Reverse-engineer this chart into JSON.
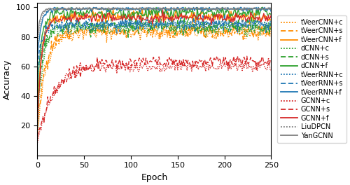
{
  "title": "",
  "xlabel": "Epoch",
  "ylabel": "Accuracy",
  "xlim": [
    0,
    250
  ],
  "ylim": [
    0,
    100
  ],
  "xticks": [
    0,
    50,
    100,
    150,
    200,
    250
  ],
  "yticks": [
    20,
    40,
    60,
    80,
    100
  ],
  "series": [
    {
      "label": "tVeerCNN+c",
      "color": "#FF8C00",
      "linestyle": "dotted",
      "start": 10,
      "final": 83,
      "rise": 0.12,
      "noise": 2.5
    },
    {
      "label": "tVeerCNN+s",
      "color": "#FF8C00",
      "linestyle": "dashed",
      "start": 18,
      "final": 84,
      "rise": 0.12,
      "noise": 2.5
    },
    {
      "label": "tVeerCNN+f",
      "color": "#FF8C00",
      "linestyle": "solid",
      "start": 30,
      "final": 94,
      "rise": 0.22,
      "noise": 2.0
    },
    {
      "label": "dCNN+c",
      "color": "#2CA02C",
      "linestyle": "dotted",
      "start": 15,
      "final": 86,
      "rise": 0.18,
      "noise": 2.5
    },
    {
      "label": "dCNN+s",
      "color": "#2CA02C",
      "linestyle": "dashed",
      "start": 25,
      "final": 87,
      "rise": 0.18,
      "noise": 2.5
    },
    {
      "label": "dCNN+f",
      "color": "#2CA02C",
      "linestyle": "solid",
      "start": 40,
      "final": 96,
      "rise": 0.25,
      "noise": 2.0
    },
    {
      "label": "tVeerRNN+c",
      "color": "#1F77B4",
      "linestyle": "dotted",
      "start": 45,
      "final": 88,
      "rise": 0.22,
      "noise": 2.0
    },
    {
      "label": "tVeerRNN+s",
      "color": "#1F77B4",
      "linestyle": "dashed",
      "start": 55,
      "final": 89,
      "rise": 0.22,
      "noise": 2.0
    },
    {
      "label": "tVeerRNN+f",
      "color": "#1F77B4",
      "linestyle": "solid",
      "start": 65,
      "final": 99,
      "rise": 0.28,
      "noise": 0.8
    },
    {
      "label": "GCNN+c",
      "color": "#D62728",
      "linestyle": "dotted",
      "start": 8,
      "final": 60,
      "rise": 0.06,
      "noise": 2.0
    },
    {
      "label": "GCNN+s",
      "color": "#D62728",
      "linestyle": "dashed",
      "start": 12,
      "final": 63,
      "rise": 0.05,
      "noise": 2.0
    },
    {
      "label": "GCNN+f",
      "color": "#D62728",
      "linestyle": "solid",
      "start": 20,
      "final": 93,
      "rise": 0.22,
      "noise": 1.5
    },
    {
      "label": "LiuDPCN",
      "color": "#7F7F7F",
      "linestyle": "dotted",
      "start": 72,
      "final": 99,
      "rise": 0.32,
      "noise": 0.5
    },
    {
      "label": "YanGCNN",
      "color": "#7F7F7F",
      "linestyle": "solid",
      "start": 78,
      "final": 99,
      "rise": 0.38,
      "noise": 0.4
    }
  ],
  "figsize": [
    5.0,
    2.64
  ],
  "dpi": 100
}
